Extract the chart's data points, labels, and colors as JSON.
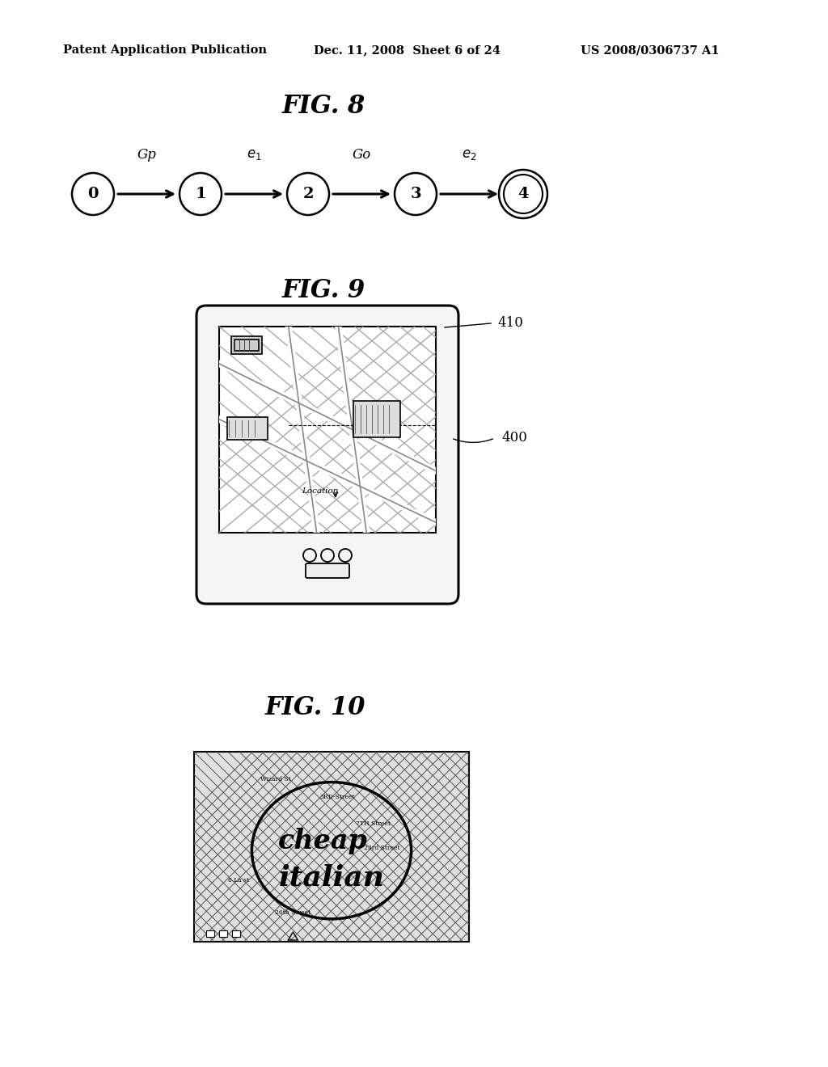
{
  "bg_color": "#ffffff",
  "header_left": "Patent Application Publication",
  "header_center": "Dec. 11, 2008  Sheet 6 of 24",
  "header_right": "US 2008/0306737 A1",
  "fig8_title": "FIG. 8",
  "fig8_nodes": [
    "0",
    "1",
    "2",
    "3",
    "4"
  ],
  "fig9_title": "FIG. 9",
  "fig9_label_410": "410",
  "fig9_label_400": "400",
  "fig10_title": "FIG. 10",
  "fig10_streets": [
    "Wizard St",
    "3RD-Street",
    "7TH Street",
    "23rd Street",
    "6 La st",
    "26th Street"
  ],
  "fig10_text1": "cheap",
  "fig10_text2": "italian"
}
